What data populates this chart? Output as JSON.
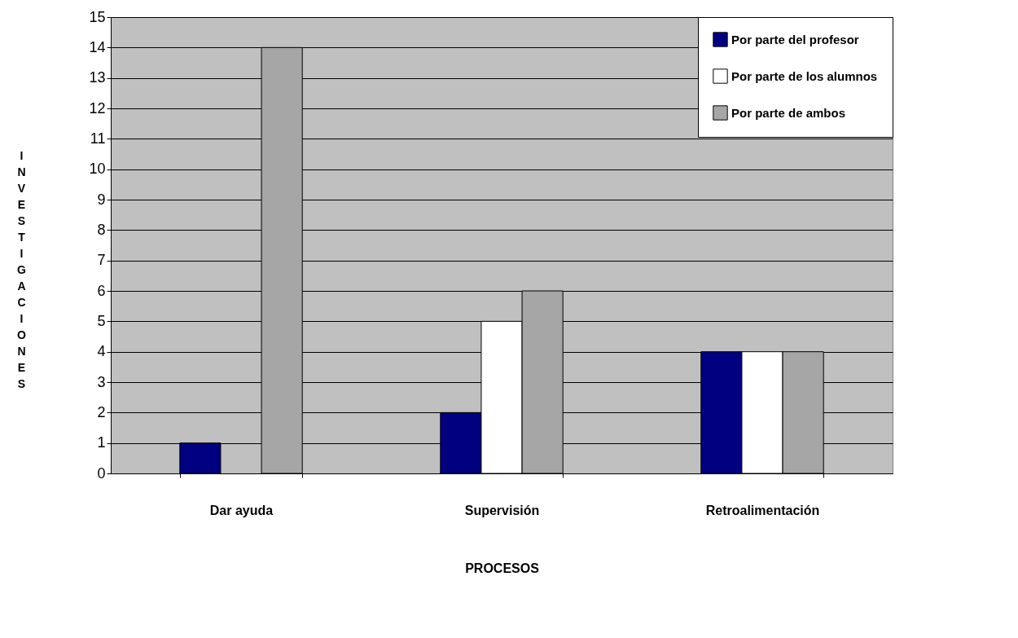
{
  "chart_data": {
    "type": "bar",
    "xlabel": "PROCESOS",
    "ylabel": "INVESTIGACIONES",
    "categories": [
      "Dar ayuda",
      "Supervisión",
      "Retroalimentación"
    ],
    "series": [
      {
        "name": "Por parte del profesor",
        "color": "#000080",
        "values": [
          1,
          2,
          4
        ]
      },
      {
        "name": "Por parte de los alumnos",
        "color": "#ffffff",
        "values": [
          null,
          5,
          4
        ]
      },
      {
        "name": "Por parte de ambos",
        "color": "#a6a6a6",
        "values": [
          14,
          6,
          4
        ]
      }
    ],
    "ylim": [
      0,
      15
    ],
    "yticks": [
      0,
      1,
      2,
      3,
      4,
      5,
      6,
      7,
      8,
      9,
      10,
      11,
      12,
      13,
      14,
      15
    ],
    "grid": "y",
    "legend": "top right"
  }
}
